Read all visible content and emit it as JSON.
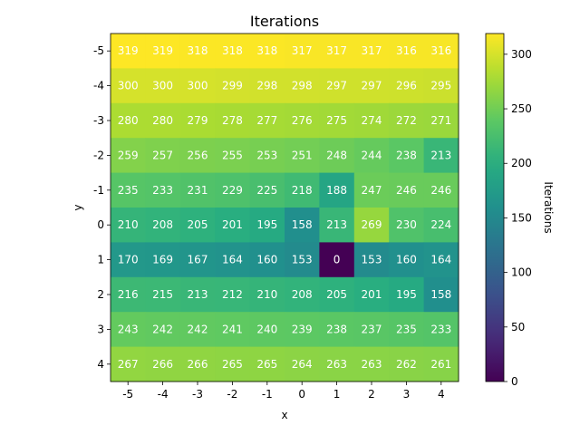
{
  "chart_data": {
    "type": "heatmap",
    "title": "Iterations",
    "xlabel": "x",
    "ylabel": "y",
    "x_categories": [
      "-5",
      "-4",
      "-3",
      "-2",
      "-1",
      "0",
      "1",
      "2",
      "3",
      "4"
    ],
    "y_categories": [
      "-5",
      "-4",
      "-3",
      "-2",
      "-1",
      "0",
      "1",
      "2",
      "3",
      "4"
    ],
    "values": [
      [
        319,
        319,
        318,
        318,
        318,
        317,
        317,
        317,
        316,
        316
      ],
      [
        300,
        300,
        300,
        299,
        298,
        298,
        297,
        297,
        296,
        295
      ],
      [
        280,
        280,
        279,
        278,
        277,
        276,
        275,
        274,
        272,
        271
      ],
      [
        259,
        257,
        256,
        255,
        253,
        251,
        248,
        244,
        238,
        213
      ],
      [
        235,
        233,
        231,
        229,
        225,
        218,
        188,
        247,
        246,
        246
      ],
      [
        210,
        208,
        205,
        201,
        195,
        158,
        213,
        269,
        230,
        224
      ],
      [
        170,
        169,
        167,
        164,
        160,
        153,
        0,
        153,
        160,
        164
      ],
      [
        216,
        215,
        213,
        212,
        210,
        208,
        205,
        201,
        195,
        158
      ],
      [
        243,
        242,
        242,
        241,
        240,
        239,
        238,
        237,
        235,
        233
      ],
      [
        267,
        266,
        266,
        265,
        265,
        264,
        263,
        263,
        262,
        261
      ]
    ],
    "vmin": 0,
    "vmax": 319,
    "colormap": "viridis",
    "colorbar": {
      "label": "Iterations",
      "ticks": [
        0,
        50,
        100,
        150,
        200,
        250,
        300
      ]
    }
  }
}
